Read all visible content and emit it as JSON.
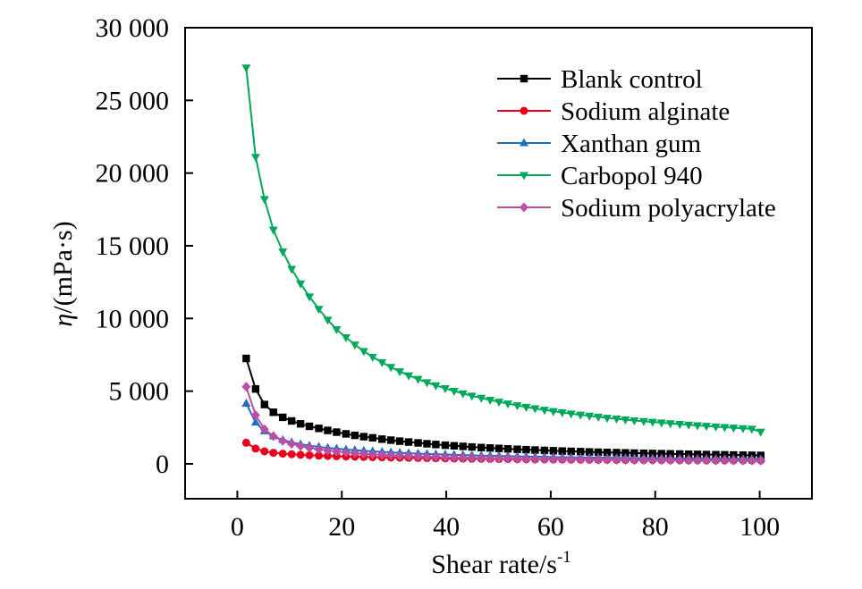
{
  "chart_data": {
    "type": "line",
    "xlabel": "Shear rate/s",
    "xlabel_superscript": "-1",
    "ylabel_symbol": "η",
    "ylabel_rest": "/(mPa·s)",
    "xlim": [
      -10,
      110
    ],
    "ylim": [
      -2400,
      30000
    ],
    "x_ticks": [
      0,
      20,
      40,
      60,
      80,
      100
    ],
    "x_tick_labels": [
      "0",
      "20",
      "40",
      "60",
      "80",
      "100"
    ],
    "y_ticks": [
      0,
      5000,
      10000,
      15000,
      20000,
      25000,
      30000
    ],
    "y_tick_labels": [
      "0",
      "5 000",
      "10 000",
      "15 000",
      "20 000",
      "25 000",
      "30 000"
    ],
    "grid": false,
    "legend_position": "top-right",
    "x": [
      1.7,
      3.5,
      5.2,
      6.9,
      8.7,
      10.4,
      12.1,
      13.8,
      15.6,
      17.3,
      19.0,
      20.8,
      22.5,
      24.2,
      25.9,
      27.7,
      29.4,
      31.1,
      32.8,
      34.6,
      36.3,
      38.0,
      39.8,
      41.5,
      43.2,
      44.9,
      46.7,
      48.4,
      50.1,
      51.8,
      53.6,
      55.3,
      57.0,
      58.8,
      60.5,
      62.2,
      63.9,
      65.7,
      67.4,
      69.1,
      70.8,
      72.6,
      74.3,
      76.0,
      77.8,
      79.5,
      81.2,
      82.9,
      84.7,
      86.4,
      88.1,
      89.8,
      91.6,
      93.3,
      95.0,
      96.8,
      98.5,
      100.2
    ],
    "series": [
      {
        "name": "Blank control",
        "color": "#000000",
        "marker": "square",
        "values": [
          7250,
          5150,
          4080,
          3550,
          3200,
          2950,
          2750,
          2580,
          2440,
          2300,
          2180,
          2060,
          1960,
          1870,
          1790,
          1700,
          1630,
          1560,
          1500,
          1440,
          1380,
          1330,
          1280,
          1240,
          1200,
          1160,
          1120,
          1090,
          1060,
          1030,
          1000,
          975,
          950,
          925,
          900,
          880,
          860,
          840,
          820,
          800,
          785,
          770,
          755,
          740,
          725,
          712,
          700,
          688,
          676,
          664,
          652,
          640,
          630,
          620,
          610,
          600,
          590,
          580
        ]
      },
      {
        "name": "Sodium alginate",
        "color": "#e8001c",
        "marker": "circle",
        "values": [
          1450,
          1050,
          860,
          760,
          700,
          660,
          620,
          590,
          565,
          545,
          525,
          505,
          490,
          475,
          460,
          448,
          436,
          425,
          414,
          404,
          395,
          386,
          378,
          370,
          362,
          355,
          348,
          341,
          335,
          329,
          323,
          317,
          312,
          307,
          302,
          297,
          292,
          288,
          284,
          280,
          276,
          272,
          268,
          265,
          262,
          259,
          256,
          253,
          250,
          247,
          244,
          241,
          238,
          236,
          234,
          232,
          230,
          228
        ]
      },
      {
        "name": "Xanthan gum",
        "color": "#1e6fbf",
        "marker": "triangle-up",
        "values": [
          4150,
          2850,
          2250,
          1900,
          1650,
          1480,
          1350,
          1250,
          1170,
          1100,
          1040,
          985,
          940,
          895,
          855,
          820,
          788,
          758,
          730,
          705,
          682,
          660,
          640,
          620,
          602,
          585,
          569,
          554,
          540,
          527,
          514,
          502,
          491,
          480,
          470,
          460,
          451,
          442,
          434,
          426,
          418,
          411,
          404,
          397,
          391,
          385,
          379,
          373,
          368,
          363,
          358,
          353,
          348,
          344,
          340,
          336,
          332,
          328
        ]
      },
      {
        "name": "Carbopol 940",
        "color": "#00a859",
        "marker": "triangle-down",
        "values": [
          27250,
          21100,
          18200,
          16100,
          14600,
          13400,
          12400,
          11500,
          10650,
          9900,
          9250,
          8700,
          8200,
          7750,
          7350,
          6980,
          6650,
          6350,
          6080,
          5830,
          5600,
          5390,
          5190,
          5010,
          4840,
          4680,
          4530,
          4390,
          4260,
          4140,
          4020,
          3910,
          3810,
          3710,
          3620,
          3530,
          3450,
          3370,
          3300,
          3230,
          3160,
          3100,
          3040,
          2980,
          2930,
          2880,
          2830,
          2780,
          2730,
          2690,
          2640,
          2600,
          2560,
          2520,
          2480,
          2440,
          2400,
          2200
        ]
      },
      {
        "name": "Sodium polyacrylate",
        "color": "#b94fa3",
        "marker": "diamond",
        "values": [
          5300,
          3350,
          2380,
          1900,
          1580,
          1380,
          1220,
          1100,
          1000,
          915,
          845,
          785,
          735,
          690,
          652,
          618,
          588,
          560,
          535,
          512,
          491,
          472,
          455,
          439,
          424,
          410,
          397,
          385,
          374,
          364,
          354,
          345,
          336,
          328,
          321,
          314,
          307,
          301,
          295,
          289,
          284,
          279,
          274,
          269,
          265,
          261,
          257,
          253,
          249,
          246,
          243,
          240,
          237,
          234,
          231,
          228,
          225,
          222
        ]
      }
    ]
  }
}
